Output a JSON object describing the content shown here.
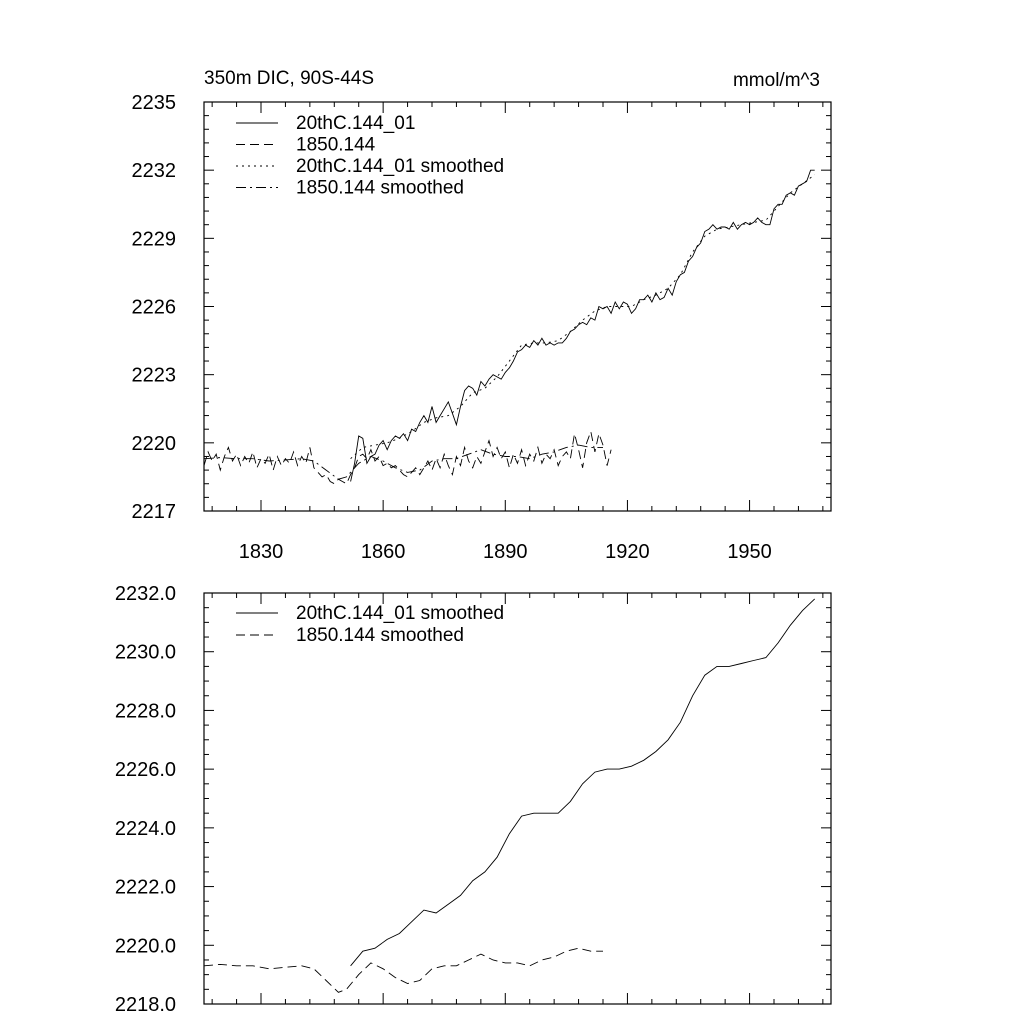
{
  "chart_data": [
    {
      "type": "line",
      "title_left": "350m DIC, 90S-44S",
      "title_right": "mmol/m^3",
      "xlim": [
        1816,
        1970
      ],
      "ylim": [
        2217,
        2235
      ],
      "xticks": [
        1830,
        1860,
        1890,
        1920,
        1950
      ],
      "xtick_labels": [
        "1830",
        "1860",
        "1890",
        "1920",
        "1950"
      ],
      "yticks": [
        2217,
        2220,
        2223,
        2226,
        2229,
        2232,
        2235
      ],
      "ytick_labels": [
        "2217",
        "2220",
        "2223",
        "2226",
        "2229",
        "2232",
        "2235"
      ],
      "grid": false,
      "legend_position": "top-left",
      "series": [
        {
          "name": "20thC.144_01",
          "style": "solid",
          "x": [
            1852,
            1853,
            1854,
            1855,
            1856,
            1857,
            1858,
            1859,
            1860,
            1861,
            1862,
            1863,
            1864,
            1865,
            1866,
            1867,
            1868,
            1869,
            1870,
            1871,
            1872,
            1873,
            1874,
            1875,
            1876,
            1877,
            1878,
            1879,
            1880,
            1881,
            1882,
            1883,
            1884,
            1885,
            1886,
            1887,
            1888,
            1889,
            1890,
            1891,
            1892,
            1893,
            1894,
            1895,
            1896,
            1897,
            1898,
            1899,
            1900,
            1901,
            1902,
            1903,
            1904,
            1905,
            1906,
            1907,
            1908,
            1909,
            1910,
            1911,
            1912,
            1913,
            1914,
            1915,
            1916,
            1917,
            1918,
            1919,
            1920,
            1921,
            1922,
            1923,
            1924,
            1925,
            1926,
            1927,
            1928,
            1929,
            1930,
            1931,
            1932,
            1933,
            1934,
            1935,
            1936,
            1937,
            1938,
            1939,
            1940,
            1941,
            1942,
            1943,
            1944,
            1945,
            1946,
            1947,
            1948,
            1949,
            1950,
            1951,
            1952,
            1953,
            1954,
            1955,
            1956,
            1957,
            1958,
            1959,
            1960,
            1961,
            1962,
            1963,
            1964,
            1965,
            1966
          ],
          "values": [
            2218.3,
            2219.1,
            2220.3,
            2220.2,
            2219.1,
            2219.4,
            2219.5,
            2219.9,
            2220.1,
            2219.7,
            2220.1,
            2220.3,
            2220.2,
            2220.4,
            2220.1,
            2220.6,
            2220.5,
            2220.9,
            2221.2,
            2220.9,
            2221.6,
            2220.9,
            2221.2,
            2221.5,
            2221.8,
            2221.3,
            2220.8,
            2221.6,
            2222.3,
            2222.5,
            2222.4,
            2222.1,
            2222.7,
            2222.5,
            2222.8,
            2223.0,
            2222.9,
            2222.8,
            2223.1,
            2223.3,
            2223.6,
            2224.0,
            2224.1,
            2224.3,
            2224.2,
            2224.5,
            2224.3,
            2224.6,
            2224.3,
            2224.4,
            2224.3,
            2224.4,
            2224.4,
            2224.6,
            2224.9,
            2225.0,
            2225.2,
            2225.3,
            2225.2,
            2225.5,
            2225.4,
            2226.0,
            2225.9,
            2226.0,
            2225.7,
            2226.2,
            2225.9,
            2226.2,
            2226.1,
            2225.7,
            2225.9,
            2226.3,
            2226.3,
            2226.5,
            2226.2,
            2226.6,
            2226.3,
            2226.4,
            2226.8,
            2226.5,
            2227.1,
            2227.4,
            2227.5,
            2228.0,
            2228.2,
            2228.6,
            2228.8,
            2229.3,
            2229.4,
            2229.6,
            2229.4,
            2229.5,
            2229.5,
            2229.4,
            2229.7,
            2229.4,
            2229.6,
            2229.7,
            2229.6,
            2229.7,
            2229.9,
            2229.7,
            2229.6,
            2229.6,
            2230.3,
            2230.5,
            2230.5,
            2230.9,
            2231.0,
            2230.9,
            2231.3,
            2231.4,
            2231.5,
            2232.0,
            2232.0
          ],
          "extra": []
        },
        {
          "name": "1850.144",
          "style": "dashed",
          "x": [
            1816,
            1817,
            1818,
            1819,
            1820,
            1821,
            1822,
            1823,
            1824,
            1825,
            1826,
            1827,
            1828,
            1829,
            1830,
            1831,
            1832,
            1833,
            1834,
            1835,
            1836,
            1837,
            1838,
            1839,
            1840,
            1841,
            1842,
            1843,
            1844,
            1845,
            1846,
            1847,
            1848,
            1849,
            1850,
            1851,
            1852,
            1853,
            1854,
            1855,
            1856,
            1857,
            1858,
            1859,
            1860,
            1861,
            1862,
            1863,
            1864,
            1865,
            1866,
            1867,
            1868,
            1869,
            1870,
            1871,
            1872,
            1873,
            1874,
            1875,
            1876,
            1877,
            1878,
            1879,
            1880,
            1881,
            1882,
            1883,
            1884,
            1885,
            1886,
            1887,
            1888,
            1889,
            1890,
            1891,
            1892,
            1893,
            1894,
            1895,
            1896,
            1897,
            1898,
            1899,
            1900,
            1901,
            1902,
            1903,
            1904,
            1905,
            1906,
            1907,
            1908,
            1909,
            1910,
            1911,
            1912,
            1913,
            1914,
            1915,
            1916
          ],
          "values": [
            2219.0,
            2219.6,
            2219.2,
            2219.5,
            2218.8,
            2219.4,
            2219.8,
            2219.2,
            2219.5,
            2219.0,
            2219.4,
            2219.1,
            2219.6,
            2218.9,
            2219.3,
            2219.1,
            2219.5,
            2218.8,
            2219.4,
            2219.0,
            2219.3,
            2219.1,
            2219.6,
            2219.0,
            2219.4,
            2219.1,
            2219.8,
            2218.9,
            2218.7,
            2218.5,
            2218.6,
            2218.3,
            2218.2,
            2218.4,
            2218.3,
            2218.2,
            2218.6,
            2218.9,
            2219.4,
            2219.5,
            2219.3,
            2219.7,
            2219.2,
            2219.4,
            2219.0,
            2219.1,
            2218.9,
            2219.0,
            2218.8,
            2218.6,
            2218.5,
            2218.7,
            2218.9,
            2218.6,
            2218.9,
            2219.2,
            2218.8,
            2219.3,
            2218.9,
            2219.5,
            2219.0,
            2218.6,
            2219.4,
            2219.0,
            2219.8,
            2219.2,
            2218.9,
            2219.4,
            2219.1,
            2219.6,
            2220.1,
            2219.4,
            2219.8,
            2219.3,
            2219.6,
            2218.9,
            2219.5,
            2219.1,
            2219.7,
            2219.0,
            2219.5,
            2219.2,
            2219.8,
            2219.1,
            2219.5,
            2219.3,
            2219.7,
            2219.0,
            2219.4,
            2219.6,
            2219.3,
            2220.4,
            2219.7,
            2218.9,
            2220.0,
            2220.5,
            2219.6,
            2220.4,
            2219.9,
            2219.0,
            2219.7
          ],
          "extra": []
        },
        {
          "name": "20thC.144_01 smoothed",
          "style": "dotted",
          "x": [
            1852,
            1855,
            1858,
            1861,
            1864,
            1867,
            1870,
            1873,
            1876,
            1879,
            1882,
            1885,
            1888,
            1891,
            1894,
            1897,
            1900,
            1903,
            1906,
            1909,
            1912,
            1915,
            1918,
            1921,
            1924,
            1927,
            1930,
            1933,
            1936,
            1939,
            1942,
            1945,
            1948,
            1951,
            1954,
            1957,
            1960,
            1963,
            1966
          ],
          "values": [
            2219.3,
            2219.8,
            2219.9,
            2220.0,
            2220.2,
            2220.5,
            2220.9,
            2221.1,
            2221.2,
            2221.6,
            2222.2,
            2222.4,
            2222.9,
            2223.6,
            2224.3,
            2224.4,
            2224.4,
            2224.5,
            2224.9,
            2225.4,
            2225.8,
            2226.0,
            2226.0,
            2226.0,
            2226.3,
            2226.5,
            2226.8,
            2227.4,
            2228.4,
            2229.1,
            2229.4,
            2229.5,
            2229.6,
            2229.7,
            2229.8,
            2230.4,
            2231.0,
            2231.4,
            2231.8
          ],
          "extra": []
        },
        {
          "name": "1850.144 smoothed",
          "style": "dashdot",
          "x": [
            1816,
            1820,
            1824,
            1828,
            1832,
            1836,
            1840,
            1843,
            1846,
            1849,
            1851,
            1854,
            1857,
            1860,
            1863,
            1866,
            1869,
            1872,
            1875,
            1878,
            1881,
            1884,
            1887,
            1890,
            1893,
            1896,
            1899,
            1902,
            1905,
            1908,
            1911,
            1914
          ],
          "values": [
            2219.3,
            2219.35,
            2219.3,
            2219.3,
            2219.2,
            2219.25,
            2219.3,
            2219.2,
            2218.8,
            2218.4,
            2218.5,
            2219.1,
            2219.4,
            2219.2,
            2218.9,
            2218.7,
            2218.8,
            2219.2,
            2219.3,
            2219.3,
            2219.5,
            2219.7,
            2219.5,
            2219.4,
            2219.4,
            2219.3,
            2219.5,
            2219.6,
            2219.8,
            2219.9,
            2219.8,
            2219.8
          ],
          "extra": []
        }
      ]
    },
    {
      "type": "line",
      "title_left": "",
      "title_right": "",
      "xlim": [
        1816,
        1970
      ],
      "ylim": [
        2218.0,
        2232.0
      ],
      "xticks": [
        1830,
        1860,
        1890,
        1920,
        1950
      ],
      "xtick_labels": [],
      "yticks": [
        2218,
        2220,
        2222,
        2224,
        2226,
        2228,
        2230,
        2232
      ],
      "ytick_labels": [
        "2218.0",
        "2220.0",
        "2222.0",
        "2224.0",
        "2226.0",
        "2228.0",
        "2230.0",
        "2232.0"
      ],
      "grid": false,
      "legend_position": "top-left",
      "series": [
        {
          "name": "20thC.144_01 smoothed",
          "style": "solid",
          "x": [
            1852,
            1855,
            1858,
            1861,
            1864,
            1867,
            1870,
            1873,
            1876,
            1879,
            1882,
            1885,
            1888,
            1891,
            1894,
            1897,
            1900,
            1903,
            1906,
            1909,
            1912,
            1915,
            1918,
            1921,
            1924,
            1927,
            1930,
            1933,
            1936,
            1939,
            1942,
            1945,
            1948,
            1951,
            1954,
            1957,
            1960,
            1963,
            1966
          ],
          "values": [
            2219.3,
            2219.8,
            2219.9,
            2220.2,
            2220.4,
            2220.8,
            2221.2,
            2221.1,
            2221.4,
            2221.7,
            2222.2,
            2222.5,
            2223.0,
            2223.8,
            2224.4,
            2224.5,
            2224.5,
            2224.5,
            2224.9,
            2225.5,
            2225.9,
            2226.0,
            2226.0,
            2226.1,
            2226.3,
            2226.6,
            2227.0,
            2227.6,
            2228.5,
            2229.2,
            2229.5,
            2229.5,
            2229.6,
            2229.7,
            2229.8,
            2230.3,
            2230.9,
            2231.4,
            2231.8
          ],
          "extra": []
        },
        {
          "name": "1850.144 smoothed",
          "style": "dashed",
          "x": [
            1816,
            1820,
            1824,
            1828,
            1832,
            1836,
            1840,
            1843,
            1846,
            1849,
            1851,
            1854,
            1857,
            1860,
            1863,
            1866,
            1869,
            1872,
            1875,
            1878,
            1881,
            1884,
            1887,
            1890,
            1893,
            1896,
            1899,
            1902,
            1905,
            1908,
            1911,
            1914
          ],
          "values": [
            2219.3,
            2219.35,
            2219.3,
            2219.3,
            2219.2,
            2219.25,
            2219.3,
            2219.2,
            2218.8,
            2218.4,
            2218.5,
            2219.0,
            2219.4,
            2219.2,
            2218.9,
            2218.7,
            2218.8,
            2219.2,
            2219.3,
            2219.3,
            2219.5,
            2219.7,
            2219.5,
            2219.4,
            2219.4,
            2219.3,
            2219.5,
            2219.6,
            2219.8,
            2219.9,
            2219.8,
            2219.8
          ],
          "extra": []
        }
      ]
    }
  ]
}
